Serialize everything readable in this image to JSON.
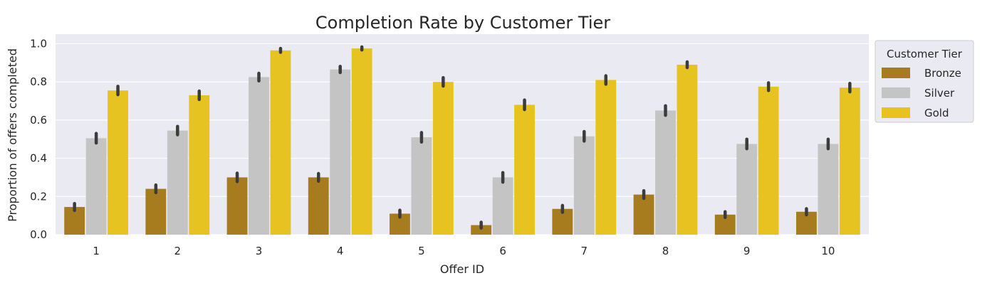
{
  "chart_data": {
    "type": "bar",
    "title": "Completion Rate by Customer Tier",
    "xlabel": "Offer ID",
    "ylabel": "Proportion of offers completed",
    "categories": [
      "1",
      "2",
      "3",
      "4",
      "5",
      "6",
      "7",
      "8",
      "9",
      "10"
    ],
    "ylim": [
      0,
      1.05
    ],
    "yticks": [
      "0.0",
      "0.2",
      "0.4",
      "0.6",
      "0.8",
      "1.0"
    ],
    "ytick_values": [
      0,
      0.2,
      0.4,
      0.6,
      0.8,
      1.0
    ],
    "grid": true,
    "legend": {
      "title": "Customer Tier",
      "placement": "outside-right"
    },
    "series": [
      {
        "name": "Bronze",
        "color": "#a67c1f",
        "values": [
          0.145,
          0.24,
          0.3,
          0.3,
          0.11,
          0.05,
          0.135,
          0.21,
          0.105,
          0.12
        ],
        "errors": [
          0.018,
          0.02,
          0.022,
          0.02,
          0.018,
          0.015,
          0.018,
          0.02,
          0.015,
          0.016
        ]
      },
      {
        "name": "Silver",
        "color": "#c4c4c4",
        "values": [
          0.505,
          0.545,
          0.825,
          0.865,
          0.51,
          0.3,
          0.515,
          0.65,
          0.475,
          0.475
        ],
        "errors": [
          0.025,
          0.022,
          0.02,
          0.016,
          0.025,
          0.025,
          0.025,
          0.025,
          0.025,
          0.025
        ]
      },
      {
        "name": "Gold",
        "color": "#e6c321",
        "values": [
          0.755,
          0.73,
          0.965,
          0.975,
          0.8,
          0.68,
          0.81,
          0.89,
          0.775,
          0.77
        ],
        "errors": [
          0.022,
          0.022,
          0.01,
          0.008,
          0.022,
          0.025,
          0.022,
          0.015,
          0.02,
          0.022
        ]
      }
    ]
  }
}
